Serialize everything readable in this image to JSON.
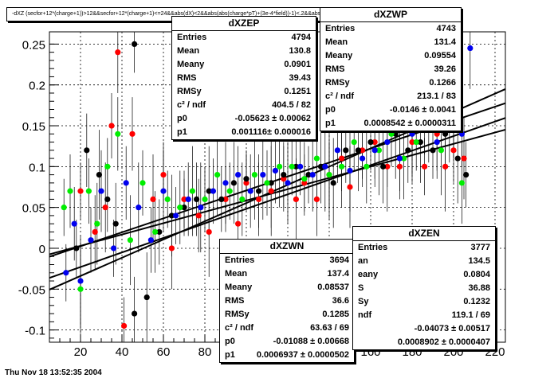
{
  "header": {
    "cut_title": "-dXZ (secfor+12*(charge+1))>12&&secfor+12*(charge+1)<=24&&abs(dX)<2&&abs(abs(charge*pT)+(3e-4*field))-1)<.2&&abs(abs(charge*"
  },
  "footer": {
    "timestamp": "Thu Nov 18 13:52:35 2004"
  },
  "stats_boxes": [
    {
      "id": "dXZEP",
      "title": "dXZEP",
      "rows": [
        {
          "label": "Entries",
          "value": "4794"
        },
        {
          "label": "Mean",
          "value": "130.8"
        },
        {
          "label": "Meany",
          "value": "0.0901"
        },
        {
          "label": "RMS",
          "value": "39.43"
        },
        {
          "label": "RMSy",
          "value": "0.1251"
        },
        {
          "label": "c² / ndf",
          "value": "404.5 / 82"
        },
        {
          "label": "p0",
          "value": "-0.05623 ± 0.00062"
        },
        {
          "label": "p1",
          "value": "0.001116± 0.000016"
        }
      ]
    },
    {
      "id": "dXZWP",
      "title": "dXZWP",
      "rows": [
        {
          "label": "Entries",
          "value": "4743"
        },
        {
          "label": "Mean",
          "value": "131.4"
        },
        {
          "label": "Meany",
          "value": "0.09554"
        },
        {
          "label": "RMS",
          "value": "39.26"
        },
        {
          "label": "RMSy",
          "value": "0.1266"
        },
        {
          "label": "c² / ndf",
          "value": "213.1 / 83"
        },
        {
          "label": "p0",
          "value": "-0.0146 ± 0.0041"
        },
        {
          "label": "p1",
          "value": "0.0008542 ± 0.0000311"
        }
      ]
    },
    {
      "id": "dXZWN",
      "title": "dXZWN",
      "rows": [
        {
          "label": "Entries",
          "value": "3694"
        },
        {
          "label": "Mean",
          "value": "137.4"
        },
        {
          "label": "Meany",
          "value": "0.08537"
        },
        {
          "label": "RMS",
          "value": "36.6"
        },
        {
          "label": "RMSy",
          "value": "0.1285"
        },
        {
          "label": "c² / ndf",
          "value": "63.63 / 69"
        },
        {
          "label": "p0",
          "value": "-0.01088 ± 0.00668"
        },
        {
          "label": "p1",
          "value": "0.0006937 ± 0.0000502"
        }
      ]
    },
    {
      "id": "dXZEN",
      "title": "dXZEN",
      "rows": [
        {
          "label": "Entries",
          "value": "3777"
        },
        {
          "label": "an",
          "value": "134.5"
        },
        {
          "label": "eany",
          "value": "0.0804"
        },
        {
          "label": "S",
          "value": "36.88"
        },
        {
          "label": "Sy",
          "value": "0.1232"
        },
        {
          "label": "ndf",
          "value": "119.1 / 69"
        },
        {
          "label": "",
          "value": "-0.04073 ± 0.00517"
        },
        {
          "label": "",
          "value": "0.0008902 ± 0.0000407"
        }
      ]
    }
  ],
  "chart_data": {
    "type": "scatter",
    "title": "",
    "xlabel": "",
    "ylabel": "",
    "xlim": [
      5,
      225
    ],
    "ylim": [
      -0.115,
      0.265
    ],
    "grid": true,
    "x_ticks": [
      20,
      40,
      60,
      80,
      100,
      120,
      140,
      160,
      180,
      200,
      220
    ],
    "y_ticks": [
      -0.1,
      -0.05,
      0,
      0.05,
      0.1,
      0.15,
      0.2,
      0.25
    ],
    "x_tick_labels": [
      "20",
      "40",
      "60",
      "80",
      "100",
      "120",
      "140",
      "160",
      "180",
      "200",
      "220"
    ],
    "y_tick_labels": [
      "-0.1",
      "-0.05",
      "0",
      "0.05",
      "0.1",
      "0.15",
      "0.2",
      "0.25"
    ],
    "series": [
      {
        "color": "#ff0000",
        "fit": {
          "p0": -0.05623,
          "p1": 0.001116,
          "x_range": [
            5,
            225
          ]
        },
        "points": [
          [
            20,
            0.07
          ],
          [
            27,
            0.02
          ],
          [
            32,
            0.05
          ],
          [
            35,
            0.15
          ],
          [
            38,
            0.24
          ],
          [
            41,
            -0.095
          ],
          [
            45,
            0.14
          ],
          [
            55,
            0.06
          ],
          [
            60,
            0.09
          ],
          [
            64,
            0.0
          ],
          [
            70,
            0.06
          ],
          [
            77,
            0.04
          ],
          [
            82,
            0.02
          ],
          [
            90,
            0.06
          ],
          [
            96,
            0.03
          ],
          [
            100,
            0.08
          ],
          [
            106,
            0.06
          ],
          [
            112,
            0.07
          ],
          [
            118,
            0.085
          ],
          [
            124,
            0.06
          ],
          [
            128,
            0.08
          ],
          [
            134,
            0.06
          ],
          [
            140,
            0.09
          ],
          [
            146,
            0.11
          ],
          [
            150,
            0.075
          ],
          [
            156,
            0.12
          ],
          [
            162,
            0.13
          ],
          [
            168,
            0.1
          ],
          [
            174,
            0.1
          ],
          [
            180,
            0.13
          ],
          [
            186,
            0.1
          ],
          [
            192,
            0.14
          ],
          [
            196,
            0.1
          ],
          [
            200,
            0.12
          ],
          [
            205,
            0.11
          ]
        ]
      },
      {
        "color": "#000000",
        "fit": {
          "p0": -0.0146,
          "p1": 0.0008542,
          "x_range": [
            5,
            225
          ]
        },
        "points": [
          [
            18,
            0.0
          ],
          [
            23,
            0.12
          ],
          [
            29,
            0.09
          ],
          [
            33,
            0.06
          ],
          [
            37,
            0.03
          ],
          [
            46,
            0.25
          ],
          [
            46,
            -0.08
          ],
          [
            52,
            -0.06
          ],
          [
            58,
            0.02
          ],
          [
            64,
            0.04
          ],
          [
            70,
            0.05
          ],
          [
            76,
            0.06
          ],
          [
            82,
            0.07
          ],
          [
            88,
            0.06
          ],
          [
            94,
            0.08
          ],
          [
            100,
            0.085
          ],
          [
            106,
            0.07
          ],
          [
            112,
            0.08
          ],
          [
            118,
            0.09
          ],
          [
            124,
            0.1
          ],
          [
            130,
            0.09
          ],
          [
            136,
            0.1
          ],
          [
            142,
            0.08
          ],
          [
            148,
            0.12
          ],
          [
            154,
            0.12
          ],
          [
            160,
            0.13
          ],
          [
            166,
            0.1
          ],
          [
            172,
            0.14
          ],
          [
            178,
            0.12
          ],
          [
            184,
            0.13
          ],
          [
            190,
            0.12
          ],
          [
            196,
            0.14
          ],
          [
            202,
            0.11
          ],
          [
            206,
            0.09
          ]
        ]
      },
      {
        "color": "#00ee00",
        "fit": {
          "p0": -0.01088,
          "p1": 0.0006937,
          "x_range": [
            5,
            225
          ]
        },
        "points": [
          [
            12,
            0.05
          ],
          [
            15,
            0.07
          ],
          [
            20,
            -0.05
          ],
          [
            24,
            0.07
          ],
          [
            28,
            0.03
          ],
          [
            33,
            0.1
          ],
          [
            38,
            0.14
          ],
          [
            44,
            0.01
          ],
          [
            50,
            0.08
          ],
          [
            56,
            0.02
          ],
          [
            62,
            0.06
          ],
          [
            68,
            0.05
          ],
          [
            74,
            0.07
          ],
          [
            80,
            0.06
          ],
          [
            86,
            0.09
          ],
          [
            92,
            0.07
          ],
          [
            98,
            0.06
          ],
          [
            104,
            0.09
          ],
          [
            110,
            0.08
          ],
          [
            116,
            0.1
          ],
          [
            122,
            0.1
          ],
          [
            128,
            0.085
          ],
          [
            134,
            0.11
          ],
          [
            140,
            0.09
          ],
          [
            146,
            0.1
          ],
          [
            152,
            0.13
          ],
          [
            158,
            0.1
          ],
          [
            164,
            0.12
          ],
          [
            170,
            0.14
          ],
          [
            176,
            0.11
          ],
          [
            182,
            0.13
          ],
          [
            188,
            0.15
          ],
          [
            194,
            0.12
          ],
          [
            200,
            0.15
          ],
          [
            204,
            0.08
          ]
        ]
      },
      {
        "color": "#0000ee",
        "fit": {
          "p0": -0.04073,
          "p1": 0.0008902,
          "x_range": [
            5,
            225
          ]
        },
        "points": [
          [
            13,
            -0.03
          ],
          [
            17,
            0.03
          ],
          [
            20,
            -0.04
          ],
          [
            25,
            0.01
          ],
          [
            30,
            0.07
          ],
          [
            36,
            0.0
          ],
          [
            42,
            0.08
          ],
          [
            48,
            0.05
          ],
          [
            54,
            0.01
          ],
          [
            60,
            0.07
          ],
          [
            66,
            0.04
          ],
          [
            72,
            0.06
          ],
          [
            78,
            0.05
          ],
          [
            84,
            0.07
          ],
          [
            90,
            0.08
          ],
          [
            96,
            0.09
          ],
          [
            102,
            0.07
          ],
          [
            108,
            0.09
          ],
          [
            114,
            0.095
          ],
          [
            120,
            0.08
          ],
          [
            126,
            0.1
          ],
          [
            132,
            0.09
          ],
          [
            138,
            0.1
          ],
          [
            144,
            0.12
          ],
          [
            150,
            0.095
          ],
          [
            156,
            0.11
          ],
          [
            162,
            0.12
          ],
          [
            168,
            0.13
          ],
          [
            174,
            0.11
          ],
          [
            180,
            0.14
          ],
          [
            186,
            0.15
          ],
          [
            192,
            0.13
          ],
          [
            198,
            0.16
          ],
          [
            204,
            0.14
          ],
          [
            208,
            0.245
          ]
        ]
      }
    ]
  }
}
